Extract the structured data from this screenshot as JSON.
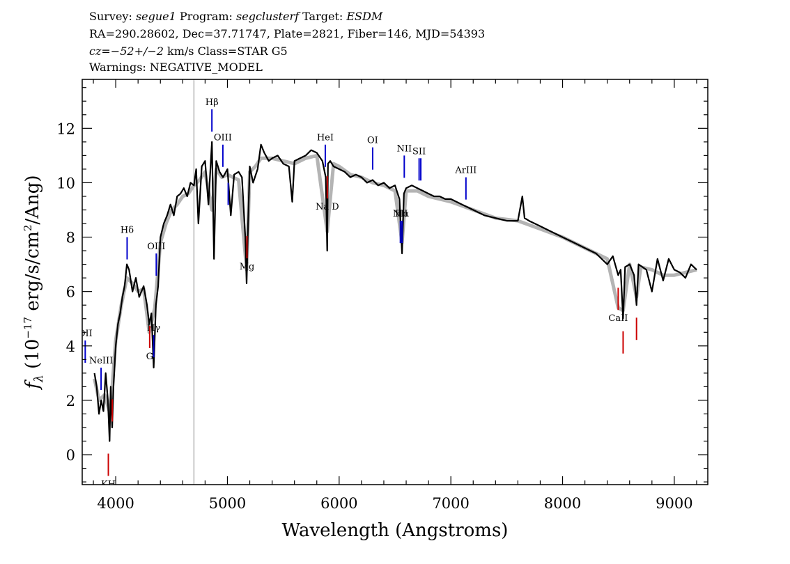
{
  "header": {
    "line1": [
      {
        "text": "Survey: ",
        "italic": false
      },
      {
        "text": "segue1",
        "italic": true
      },
      {
        "text": " Program: ",
        "italic": false
      },
      {
        "text": "segclusterf",
        "italic": true
      },
      {
        "text": " Target: ",
        "italic": false
      },
      {
        "text": "ESDM",
        "italic": true
      }
    ],
    "line2": "RA=290.28602, Dec=37.71747, Plate=2821, Fiber=146, MJD=54393",
    "line3": [
      {
        "text": "cz=−52+/−2",
        "italic": true
      },
      {
        "text": " km/s Class=STAR G5",
        "italic": false
      }
    ],
    "line4": "Warnings: NEGATIVE_MODEL"
  },
  "chart_data": {
    "type": "line",
    "xlabel": "Wavelength (Angstroms)",
    "ylabel": "f_λ (10^-17 erg/s/cm²/Ang)",
    "xlim": [
      3700,
      9300
    ],
    "ylim": [
      -1.1,
      13.8
    ],
    "xticks": [
      4000,
      5000,
      6000,
      7000,
      8000,
      9000
    ],
    "yticks": [
      0,
      2,
      4,
      6,
      8,
      10,
      12
    ],
    "colors": {
      "flux": "#000000",
      "model": "#b4b4b4",
      "emission": "#0000cc",
      "absorption": "#cc0000",
      "axis": "#000000"
    },
    "vertical_marker_x": 4700,
    "series": [
      {
        "role": "observed flux (black)",
        "x": [
          3810,
          3830,
          3850,
          3870,
          3890,
          3910,
          3930,
          3945,
          3955,
          3968,
          3980,
          4000,
          4020,
          4040,
          4060,
          4080,
          4100,
          4120,
          4150,
          4180,
          4210,
          4250,
          4280,
          4300,
          4320,
          4340,
          4360,
          4380,
          4400,
          4430,
          4460,
          4490,
          4520,
          4550,
          4580,
          4610,
          4640,
          4670,
          4700,
          4720,
          4740,
          4770,
          4800,
          4830,
          4861,
          4880,
          4900,
          4930,
          4960,
          5000,
          5030,
          5060,
          5100,
          5130,
          5160,
          5172,
          5185,
          5200,
          5230,
          5270,
          5300,
          5330,
          5370,
          5400,
          5450,
          5500,
          5550,
          5580,
          5600,
          5650,
          5700,
          5750,
          5800,
          5850,
          5880,
          5893,
          5900,
          5920,
          5950,
          6000,
          6050,
          6100,
          6150,
          6200,
          6250,
          6300,
          6350,
          6400,
          6450,
          6500,
          6540,
          6563,
          6580,
          6600,
          6650,
          6700,
          6750,
          6800,
          6850,
          6900,
          6950,
          7000,
          7100,
          7200,
          7300,
          7400,
          7500,
          7600,
          7640,
          7660,
          7700,
          7800,
          7900,
          8000,
          8100,
          8200,
          8300,
          8400,
          8450,
          8498,
          8520,
          8542,
          8560,
          8600,
          8640,
          8662,
          8680,
          8750,
          8800,
          8850,
          8900,
          8950,
          9000,
          9050,
          9100,
          9150,
          9200
        ],
        "y": [
          3.0,
          2.5,
          1.5,
          2.0,
          1.6,
          3.0,
          2.0,
          0.5,
          2.5,
          1.0,
          2.5,
          4.0,
          4.8,
          5.2,
          5.8,
          6.2,
          7.0,
          6.8,
          6.0,
          6.5,
          5.8,
          6.2,
          5.5,
          4.8,
          5.2,
          3.2,
          5.5,
          6.2,
          8.0,
          8.5,
          8.8,
          9.2,
          8.8,
          9.5,
          9.6,
          9.8,
          9.5,
          10.0,
          9.9,
          10.5,
          8.5,
          10.6,
          10.8,
          9.2,
          11.5,
          7.2,
          10.8,
          10.4,
          10.2,
          10.5,
          8.8,
          10.3,
          10.4,
          10.2,
          8.0,
          6.3,
          8.5,
          10.6,
          10.0,
          10.5,
          11.4,
          11.1,
          10.8,
          10.9,
          11.0,
          10.7,
          10.6,
          9.3,
          10.8,
          10.9,
          11.0,
          11.2,
          11.1,
          10.8,
          10.2,
          7.5,
          10.7,
          10.8,
          10.6,
          10.5,
          10.4,
          10.2,
          10.3,
          10.2,
          10.0,
          10.1,
          9.9,
          10.0,
          9.8,
          9.9,
          9.4,
          7.4,
          9.6,
          9.8,
          9.9,
          9.8,
          9.7,
          9.6,
          9.5,
          9.5,
          9.4,
          9.4,
          9.2,
          9.0,
          8.8,
          8.7,
          8.6,
          8.6,
          9.5,
          8.7,
          8.6,
          8.4,
          8.2,
          8.0,
          7.8,
          7.6,
          7.4,
          7.0,
          7.3,
          6.6,
          6.8,
          5.0,
          6.9,
          7.0,
          6.6,
          5.5,
          7.0,
          6.8,
          6.0,
          7.2,
          6.4,
          7.2,
          6.8,
          6.7,
          6.5,
          7.0,
          6.8
        ]
      },
      {
        "role": "model (grey)",
        "x": [
          3810,
          3850,
          3900,
          3950,
          4000,
          4050,
          4100,
          4150,
          4200,
          4250,
          4300,
          4350,
          4400,
          4450,
          4500,
          4550,
          4600,
          4650,
          4700,
          4750,
          4800,
          4861,
          4900,
          4950,
          5000,
          5050,
          5100,
          5172,
          5200,
          5250,
          5300,
          5400,
          5500,
          5600,
          5700,
          5800,
          5893,
          5950,
          6000,
          6100,
          6200,
          6300,
          6400,
          6500,
          6563,
          6600,
          6700,
          6800,
          6900,
          7000,
          7200,
          7400,
          7600,
          7800,
          8000,
          8200,
          8400,
          8498,
          8542,
          8600,
          8662,
          8700,
          8800,
          8900,
          9000,
          9100,
          9200
        ],
        "y": [
          2.8,
          2.0,
          2.2,
          1.5,
          4.2,
          5.5,
          6.5,
          6.3,
          6.0,
          6.1,
          4.5,
          5.4,
          7.8,
          8.5,
          9.0,
          9.2,
          9.5,
          9.6,
          9.9,
          10.1,
          10.4,
          9.0,
          10.5,
          10.2,
          10.3,
          10.2,
          10.1,
          6.8,
          10.4,
          10.6,
          10.9,
          10.9,
          10.8,
          10.7,
          10.9,
          11.0,
          8.2,
          10.7,
          10.6,
          10.3,
          10.2,
          10.0,
          9.9,
          9.7,
          7.8,
          9.7,
          9.7,
          9.5,
          9.4,
          9.3,
          9.0,
          8.7,
          8.6,
          8.3,
          8.0,
          7.6,
          7.2,
          5.4,
          5.3,
          7.0,
          5.8,
          6.9,
          6.8,
          6.6,
          6.6,
          6.7,
          6.8
        ]
      }
    ],
    "emission_lines": [
      {
        "label": "OII",
        "x": 3727,
        "label_dir": "above"
      },
      {
        "label": "NeIII",
        "x": 3869,
        "label_dir": "above"
      },
      {
        "label": "Hδ",
        "x": 4102,
        "label_dir": "above"
      },
      {
        "label": "Hγ",
        "x": 4340,
        "label_dir": "above"
      },
      {
        "label": "OIII",
        "x": 4363,
        "label_dir": "above"
      },
      {
        "label": "Hβ",
        "x": 4861,
        "label_dir": "above"
      },
      {
        "label": "OIII",
        "x": 4959,
        "label_dir": "above"
      },
      {
        "label": "",
        "x": 5007,
        "label_dir": "above"
      },
      {
        "label": "HeI",
        "x": 5876,
        "label_dir": "above"
      },
      {
        "label": "OI",
        "x": 6300,
        "label_dir": "above"
      },
      {
        "label": "NII",
        "x": 6548,
        "label_dir": "above"
      },
      {
        "label": "Hα",
        "x": 6563,
        "label_dir": "above"
      },
      {
        "label": "NII",
        "x": 6583,
        "label_dir": "above"
      },
      {
        "label": "SII",
        "x": 6716,
        "label_dir": "above"
      },
      {
        "label": "",
        "x": 6731,
        "label_dir": "above"
      },
      {
        "label": "ArIII",
        "x": 7135,
        "label_dir": "above"
      }
    ],
    "absorption_lines": [
      {
        "label": "KH",
        "x": 3934
      },
      {
        "label": "",
        "x": 3969
      },
      {
        "label": "G",
        "x": 4304
      },
      {
        "label": "Mg",
        "x": 5175
      },
      {
        "label": "Na D",
        "x": 5894
      },
      {
        "label": "CaII",
        "x": 8498
      },
      {
        "label": "",
        "x": 8542
      },
      {
        "label": "",
        "x": 8662
      }
    ]
  }
}
